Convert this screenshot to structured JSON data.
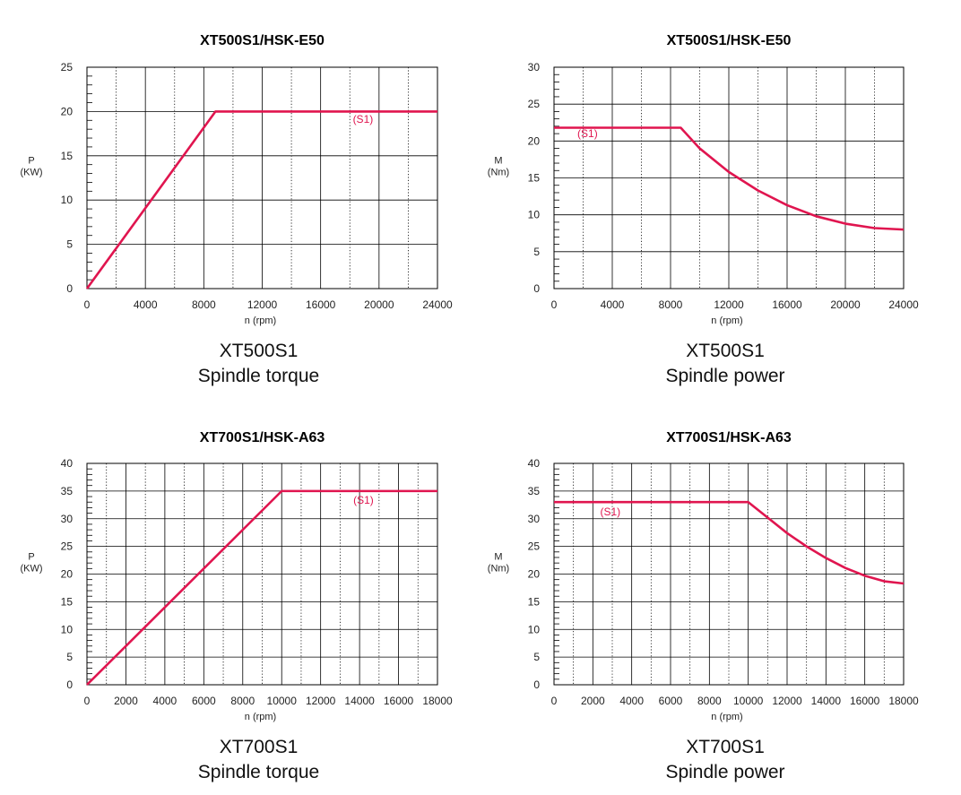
{
  "colors": {
    "curve": "#e0154f",
    "grid": "#000000"
  },
  "chart_data": [
    {
      "type": "line",
      "title": "XT500S1/HSK-E50",
      "xlabel": "n (rpm)",
      "ylabel": [
        "P",
        "(KW)"
      ],
      "caption": [
        "XT500S1",
        "Spindle torque"
      ],
      "xlim": [
        0,
        24000
      ],
      "ylim": [
        0,
        25
      ],
      "xticks": [
        0,
        4000,
        8000,
        12000,
        16000,
        20000,
        24000
      ],
      "xtick_labels": [
        "0",
        "4000",
        "8000",
        "12000",
        "16000",
        "20000",
        "24000"
      ],
      "yticks": [
        0,
        5,
        10,
        15,
        20,
        25
      ],
      "ytick_labels": [
        "0",
        "5",
        "10",
        "15",
        "20",
        "25"
      ],
      "annotation": {
        "text": "(S1)",
        "x": 18900,
        "y": 18.7
      },
      "series": [
        {
          "name": "(S1)",
          "x": [
            0,
            8800,
            24000
          ],
          "y": [
            0,
            20,
            20
          ]
        }
      ]
    },
    {
      "type": "line",
      "title": "XT500S1/HSK-E50",
      "xlabel": "n (rpm)",
      "ylabel": [
        "M",
        "(Nm)"
      ],
      "caption": [
        "XT500S1",
        "Spindle power"
      ],
      "xlim": [
        0,
        24000
      ],
      "ylim": [
        0,
        30
      ],
      "xticks": [
        0,
        4000,
        8000,
        12000,
        16000,
        20000,
        24000
      ],
      "xtick_labels": [
        "0",
        "4000",
        "8000",
        "12000",
        "16000",
        "20000",
        "24000"
      ],
      "yticks": [
        0,
        5,
        10,
        15,
        20,
        25,
        30
      ],
      "ytick_labels": [
        "0",
        "5",
        "10",
        "15",
        "20",
        "25",
        "30"
      ],
      "annotation": {
        "text": "(S1)",
        "x": 2300,
        "y": 20.5
      },
      "series": [
        {
          "name": "(S1)",
          "x": [
            0,
            8700,
            10000,
            12000,
            14000,
            16000,
            18000,
            20000,
            22000,
            24000
          ],
          "y": [
            21.8,
            21.8,
            19.0,
            15.8,
            13.3,
            11.3,
            9.8,
            8.8,
            8.2,
            8.0
          ]
        }
      ]
    },
    {
      "type": "line",
      "title": "XT700S1/HSK-A63",
      "xlabel": "n (rpm)",
      "ylabel": [
        "P",
        "(KW)"
      ],
      "caption": [
        "XT700S1",
        "Spindle torque"
      ],
      "xlim": [
        0,
        18000
      ],
      "ylim": [
        0,
        40
      ],
      "xticks": [
        0,
        2000,
        4000,
        6000,
        8000,
        10000,
        12000,
        14000,
        16000,
        18000
      ],
      "xtick_labels": [
        "0",
        "2000",
        "4000",
        "6000",
        "8000",
        "10000",
        "12000",
        "14000",
        "16000",
        "18000"
      ],
      "yticks": [
        0,
        5,
        10,
        15,
        20,
        25,
        30,
        35,
        40
      ],
      "ytick_labels": [
        "0",
        "5",
        "10",
        "15",
        "20",
        "25",
        "30",
        "35",
        "40"
      ],
      "annotation": {
        "text": "(S1)",
        "x": 14200,
        "y": 32.7
      },
      "series": [
        {
          "name": "(S1)",
          "x": [
            0,
            10000,
            18000
          ],
          "y": [
            0,
            35,
            35
          ]
        }
      ]
    },
    {
      "type": "line",
      "title": "XT700S1/HSK-A63",
      "xlabel": "n (rpm)",
      "ylabel": [
        "M",
        "(Nm)"
      ],
      "caption": [
        "XT700S1",
        "Spindle power"
      ],
      "xlim": [
        0,
        18000
      ],
      "ylim": [
        0,
        40
      ],
      "xticks": [
        0,
        2000,
        4000,
        6000,
        8000,
        10000,
        12000,
        14000,
        16000,
        18000
      ],
      "xtick_labels": [
        "0",
        "2000",
        "4000",
        "6000",
        "8000",
        "10000",
        "12000",
        "14000",
        "16000",
        "18000"
      ],
      "yticks": [
        0,
        5,
        10,
        15,
        20,
        25,
        30,
        35,
        40
      ],
      "ytick_labels": [
        "0",
        "5",
        "10",
        "15",
        "20",
        "25",
        "30",
        "35",
        "40"
      ],
      "annotation": {
        "text": "(S1)",
        "x": 2900,
        "y": 30.6
      },
      "series": [
        {
          "name": "(S1)",
          "x": [
            0,
            10000,
            11000,
            12000,
            13000,
            14000,
            15000,
            16000,
            17000,
            18000
          ],
          "y": [
            33,
            33,
            30.2,
            27.4,
            25.0,
            22.9,
            21.1,
            19.7,
            18.7,
            18.3
          ]
        }
      ]
    }
  ]
}
